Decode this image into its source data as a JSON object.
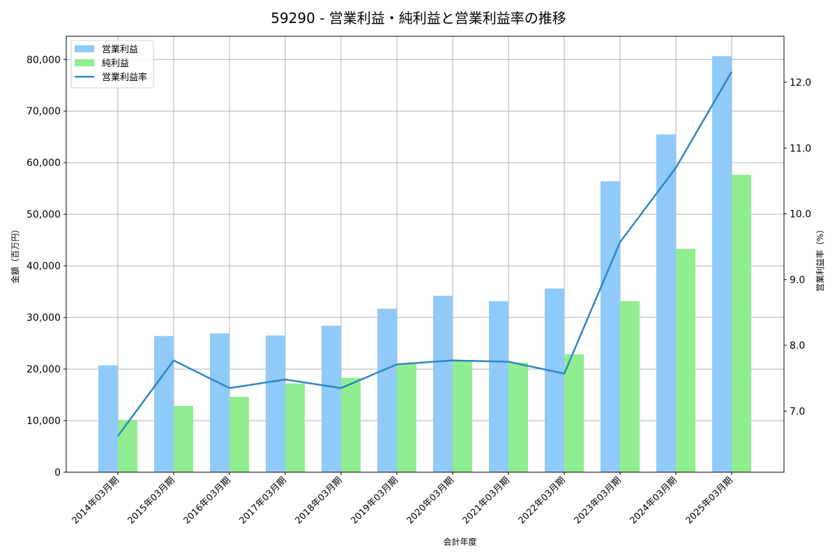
{
  "chart_data": {
    "type": "bar",
    "title": "59290 - 営業利益・純利益と営業利益率の推移",
    "xlabel": "会計年度",
    "ylabel": "金額（百万円）",
    "ylabel_right": "営業利益率（%）",
    "categories": [
      "2014年03月期",
      "2015年03月期",
      "2016年03月期",
      "2017年03月期",
      "2018年03月期",
      "2019年03月期",
      "2020年03月期",
      "2021年03月期",
      "2022年03月期",
      "2023年03月期",
      "2024年03月期",
      "2025年03月期"
    ],
    "series": [
      {
        "name": "営業利益",
        "type": "bar",
        "axis": "left",
        "color": "#90CAF9",
        "values": [
          20700,
          26400,
          26900,
          26500,
          28400,
          31700,
          34200,
          33150,
          35600,
          56400,
          65500,
          80650
        ]
      },
      {
        "name": "純利益",
        "type": "bar",
        "axis": "left",
        "color": "#90EE90",
        "values": [
          10150,
          12850,
          14600,
          17200,
          18300,
          21000,
          21650,
          21250,
          22850,
          33150,
          43300,
          57650
        ]
      },
      {
        "name": "営業利益率",
        "type": "line",
        "axis": "right",
        "color": "#2E86C1",
        "values": [
          6.62,
          7.77,
          7.35,
          7.48,
          7.35,
          7.71,
          7.77,
          7.75,
          7.57,
          9.57,
          10.7,
          12.16
        ]
      }
    ],
    "ylim": [
      0,
      84500
    ],
    "ylim_right": [
      6.07,
      12.7
    ],
    "yticks": [
      0,
      10000,
      20000,
      30000,
      40000,
      50000,
      60000,
      70000,
      80000
    ],
    "ytick_labels": [
      "0",
      "10,000",
      "20,000",
      "30,000",
      "40,000",
      "50,000",
      "60,000",
      "70,000",
      "80,000"
    ],
    "yticks_right": [
      7.0,
      8.0,
      9.0,
      10.0,
      11.0,
      12.0
    ],
    "ytick_labels_right": [
      "7.0",
      "8.0",
      "9.0",
      "10.0",
      "11.0",
      "12.0"
    ],
    "grid": true,
    "legend_position": "upper left"
  }
}
